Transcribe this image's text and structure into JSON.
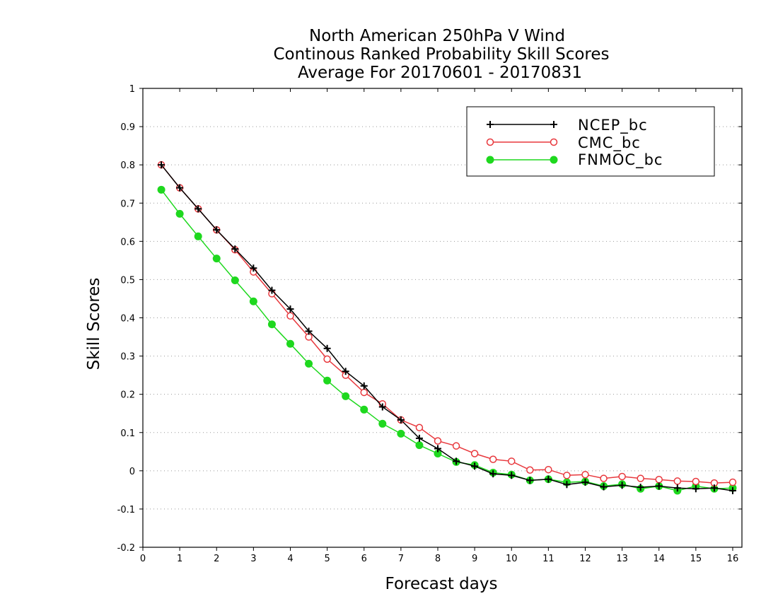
{
  "chart_data": {
    "type": "line",
    "title_lines": [
      "North American 250hPa V Wind",
      "Continous Ranked Probability Skill Scores",
      "Average For 20170601 - 20170831"
    ],
    "xlabel": "Forecast days",
    "ylabel": "Skill Scores",
    "xlim": [
      0,
      16.25
    ],
    "ylim": [
      -0.2,
      1
    ],
    "xticks": [
      0,
      1,
      2,
      3,
      4,
      5,
      6,
      7,
      8,
      9,
      10,
      11,
      12,
      13,
      14,
      15,
      16
    ],
    "yticks": [
      -0.2,
      -0.1,
      0,
      0.1,
      0.2,
      0.3,
      0.4,
      0.5,
      0.6,
      0.7,
      0.8,
      0.9,
      1
    ],
    "ytick_labels": [
      "-0.2",
      "-0.1",
      "0",
      "0.1",
      "0.2",
      "0.3",
      "0.4",
      "0.5",
      "0.6",
      "0.7",
      "0.8",
      "0.9",
      "1"
    ],
    "grid": "horizontal dotted",
    "legend_position": "top-right",
    "x": [
      0.5,
      1,
      1.5,
      2,
      2.5,
      3,
      3.5,
      4,
      4.5,
      5,
      5.5,
      6,
      6.5,
      7,
      7.5,
      8,
      8.5,
      9,
      9.5,
      10,
      10.5,
      11,
      11.5,
      12,
      12.5,
      13,
      13.5,
      14,
      14.5,
      15,
      15.5,
      16
    ],
    "series": [
      {
        "name": "NCEP_bc",
        "color": "#000000",
        "marker": "plus",
        "values": [
          0.8,
          0.74,
          0.685,
          0.63,
          0.58,
          0.53,
          0.472,
          0.423,
          0.365,
          0.32,
          0.26,
          0.222,
          0.167,
          0.133,
          0.085,
          0.058,
          0.025,
          0.012,
          -0.008,
          -0.012,
          -0.025,
          -0.022,
          -0.036,
          -0.03,
          -0.042,
          -0.038,
          -0.043,
          -0.04,
          -0.045,
          -0.047,
          -0.045,
          -0.052
        ]
      },
      {
        "name": "CMC_bc",
        "color": "#e8383d",
        "marker": "open-circle",
        "values": [
          0.8,
          0.74,
          0.685,
          0.63,
          0.578,
          0.52,
          0.463,
          0.405,
          0.35,
          0.292,
          0.25,
          0.205,
          0.175,
          0.133,
          0.113,
          0.078,
          0.065,
          0.045,
          0.03,
          0.025,
          0.002,
          0.003,
          -0.012,
          -0.01,
          -0.02,
          -0.015,
          -0.02,
          -0.023,
          -0.027,
          -0.028,
          -0.032,
          -0.03
        ]
      },
      {
        "name": "FNMOC_bc",
        "color": "#1ed81e",
        "marker": "filled-circle",
        "values": [
          0.735,
          0.672,
          0.613,
          0.555,
          0.498,
          0.443,
          0.383,
          0.332,
          0.28,
          0.236,
          0.195,
          0.16,
          0.123,
          0.097,
          0.067,
          0.045,
          0.023,
          0.015,
          -0.005,
          -0.01,
          -0.025,
          -0.022,
          -0.03,
          -0.028,
          -0.04,
          -0.035,
          -0.047,
          -0.04,
          -0.052,
          -0.04,
          -0.047,
          -0.045
        ]
      }
    ]
  }
}
